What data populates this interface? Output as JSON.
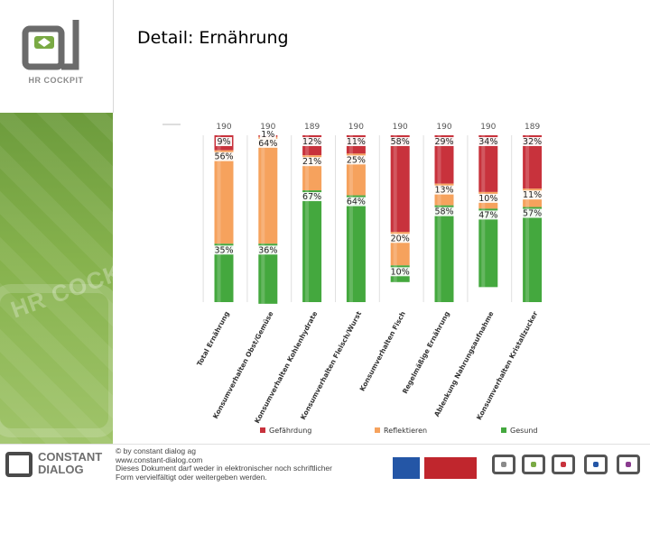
{
  "page": {
    "title": "Detail: Ernährung"
  },
  "sidebar": {
    "logo_label": "HR COCKPIT",
    "watermark": "HR COCKPIT"
  },
  "colors": {
    "gefaehrdung": "#c8323c",
    "reflektieren": "#f6a25d",
    "gesund": "#44a83e",
    "sidebar_green": "#7aaa44"
  },
  "chart_data": {
    "type": "bar",
    "stacked": true,
    "percent_stacked": true,
    "categories": [
      "Total Ernährung",
      "Konsumverhalten Obst/Gemüse",
      "Konsumverhalten Kohlenhydrate",
      "Konsumverhalten Fleisch/Wurst",
      "Konsumverhalten Fisch",
      "Regelmäßige Ernährung",
      "Ablenkung Nahrungsaufnahme",
      "Konsumverhalten Kristallzucker"
    ],
    "n_labels": [
      "190",
      "190",
      "189",
      "190",
      "190",
      "190",
      "190",
      "189"
    ],
    "series": [
      {
        "name": "Gefährdung",
        "values": [
          9,
          1,
          12,
          11,
          58,
          29,
          34,
          32
        ]
      },
      {
        "name": "Reflektieren",
        "values": [
          56,
          64,
          21,
          25,
          20,
          13,
          10,
          11
        ]
      },
      {
        "name": "Gesund",
        "values": [
          35,
          36,
          67,
          64,
          10,
          58,
          47,
          57
        ]
      }
    ],
    "data_labels": [
      [
        "9%",
        "56%",
        "35%"
      ],
      [
        "1%",
        "64%",
        "36%"
      ],
      [
        "12%",
        "21%",
        "67%"
      ],
      [
        "11%",
        "25%",
        "64%"
      ],
      [
        "58%",
        "20%",
        "10%"
      ],
      [
        "29%",
        "13%",
        "58%"
      ],
      [
        "34%",
        "10%",
        "47%"
      ],
      [
        "32%",
        "11%",
        "57%"
      ]
    ],
    "ylim": [
      0,
      100
    ],
    "legend_position": "bottom",
    "grid": false
  },
  "footer": {
    "company": [
      "CONSTANT",
      "DIALOG"
    ],
    "copyright_lines": [
      "© by constant dialog ag",
      "www.constant-dialog.com",
      "Dieses Dokument darf weder in elektronischer noch schriftlicher",
      "Form vervielfältigt oder weitergeben werden."
    ],
    "brands": [
      "CONSTANT DIALOG",
      "HR COCKPIT",
      "VALUEDASH",
      "DIALOG DEVELOPMENT",
      "DIALOG FEEDBACK"
    ]
  }
}
